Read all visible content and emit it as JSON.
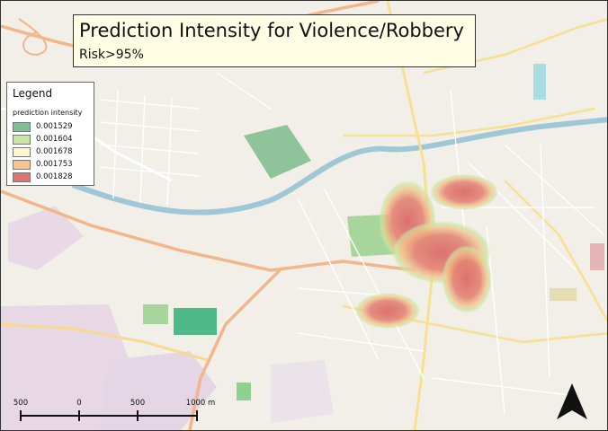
{
  "map": {
    "title": "Prediction Intensity for Violence/Robbery",
    "subtitle": "Risk>95%"
  },
  "legend": {
    "heading": "Legend",
    "subheading": "prediction intensity",
    "items": [
      {
        "label": "0.001529",
        "color": "#7fbf95"
      },
      {
        "label": "0.001604",
        "color": "#c8e6a0"
      },
      {
        "label": "0.001678",
        "color": "#fdf7d1"
      },
      {
        "label": "0.001753",
        "color": "#f7c48d"
      },
      {
        "label": "0.001828",
        "color": "#e07373"
      }
    ]
  },
  "scale_bar": {
    "labels": [
      "500",
      "0",
      "500",
      "1000 m"
    ]
  },
  "north_arrow": {
    "icon": "north-arrow-icon"
  }
}
